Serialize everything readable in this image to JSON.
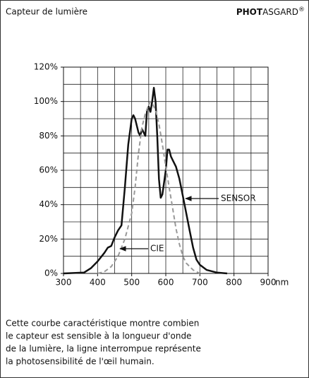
{
  "header": {
    "title": "Capteur de lumière",
    "brand": {
      "bold": "PHOT",
      "rest": "ASGARD",
      "mark": "®"
    }
  },
  "chart_data": {
    "type": "line",
    "x_label": "nm",
    "xlim": [
      300,
      900
    ],
    "xticks": [
      300,
      400,
      500,
      600,
      700,
      800,
      900
    ],
    "ylim": [
      0,
      120
    ],
    "yticks": [
      {
        "value": 0,
        "label": "0%"
      },
      {
        "value": 20,
        "label": "20%"
      },
      {
        "value": 40,
        "label": "40%"
      },
      {
        "value": 60,
        "label": "60%"
      },
      {
        "value": 80,
        "label": "80%"
      },
      {
        "value": 100,
        "label": "100%"
      },
      {
        "value": 120,
        "label": "120%"
      }
    ],
    "grid": {
      "x_step": 50,
      "y_step": 10
    },
    "series": [
      {
        "name": "SENSOR",
        "color": "#111111",
        "dashed": false,
        "x": [
          300,
          360,
          380,
          400,
          420,
          430,
          440,
          450,
          460,
          470,
          480,
          490,
          500,
          505,
          510,
          520,
          525,
          530,
          540,
          545,
          550,
          555,
          560,
          565,
          570,
          575,
          580,
          585,
          590,
          600,
          605,
          610,
          615,
          620,
          630,
          640,
          650,
          660,
          670,
          680,
          690,
          700,
          720,
          750,
          780
        ],
        "values": [
          0,
          0.5,
          3,
          7,
          12,
          15,
          16,
          21,
          25,
          28,
          50,
          75,
          90,
          92,
          90,
          82,
          80,
          84,
          80,
          95,
          97,
          94,
          100,
          108,
          100,
          80,
          55,
          44,
          46,
          60,
          72,
          72,
          68,
          66,
          62,
          55,
          45,
          35,
          25,
          15,
          8,
          5,
          2,
          0.5,
          0
        ]
      },
      {
        "name": "CIE",
        "color": "#999999",
        "dashed": true,
        "x": [
          400,
          420,
          440,
          460,
          480,
          500,
          510,
          520,
          530,
          540,
          550,
          555,
          560,
          570,
          580,
          590,
          600,
          610,
          620,
          630,
          640,
          650,
          660,
          680,
          700
        ],
        "values": [
          0,
          1,
          4,
          10,
          20,
          35,
          50,
          70,
          85,
          93,
          98,
          100,
          99,
          95,
          87,
          75,
          62,
          50,
          38,
          26,
          17,
          10,
          6,
          2,
          0
        ]
      }
    ]
  },
  "description": {
    "lines": [
      "Cette courbe caractéristique montre combien",
      "le capteur est sensible à la longueur d'onde",
      "de la lumière, la ligne interrompue représente",
      "la photosensibilité de l'œil humain."
    ]
  }
}
